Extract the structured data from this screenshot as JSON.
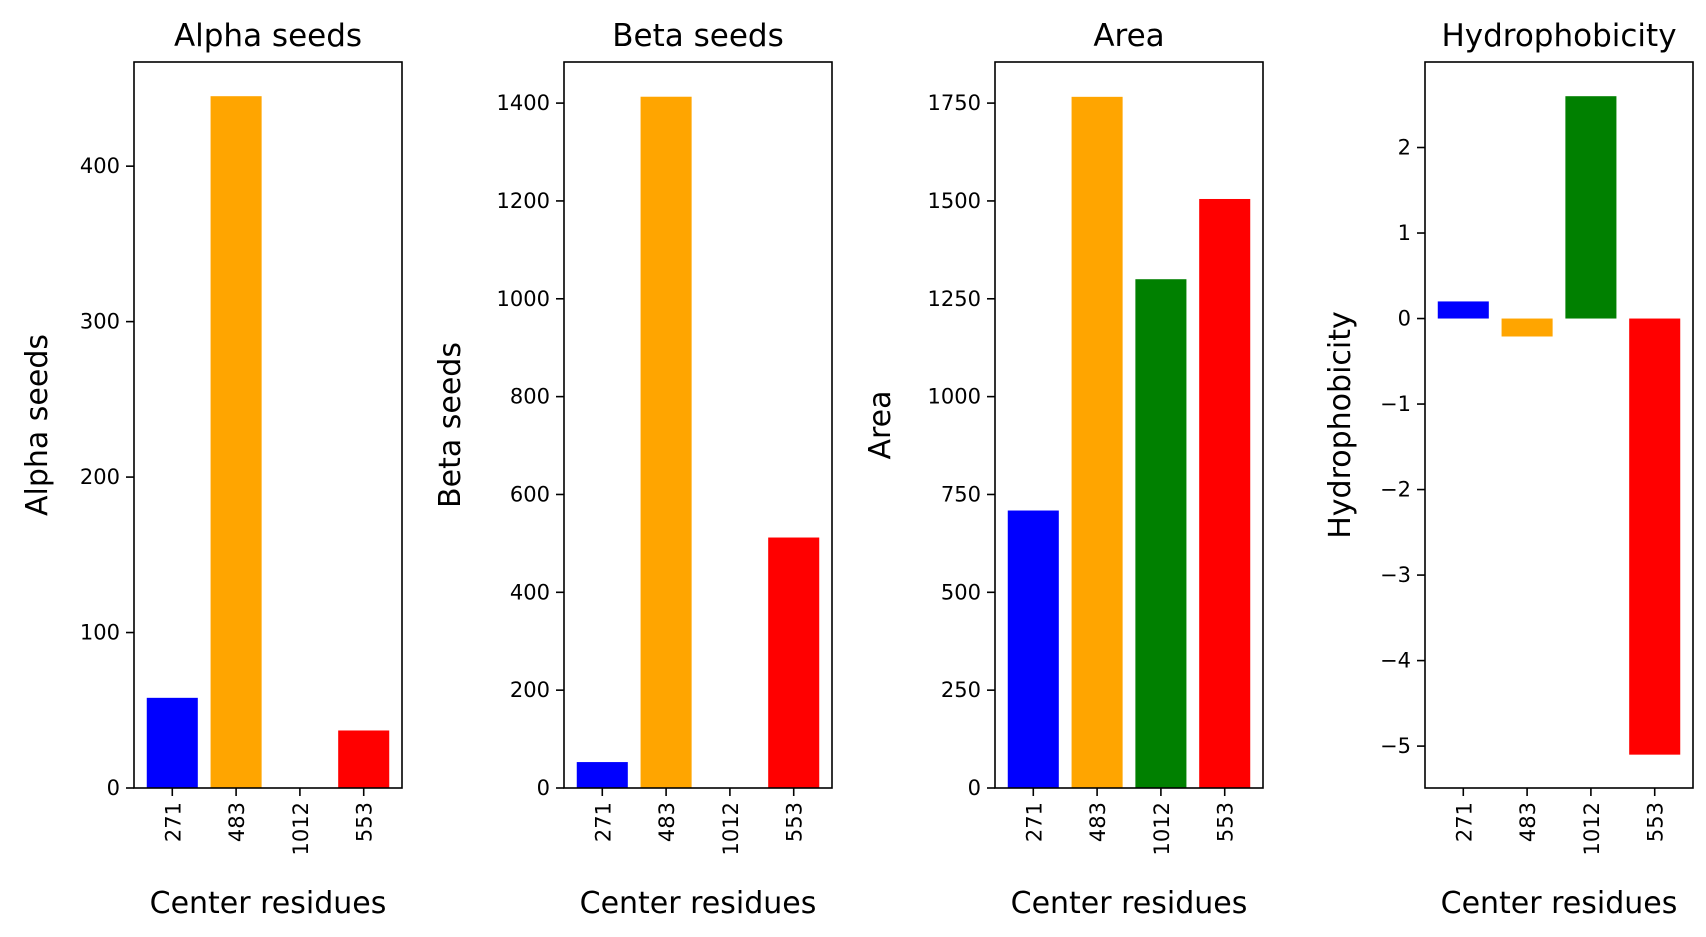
{
  "chart_data": [
    {
      "type": "bar",
      "title": "Alpha seeds",
      "xlabel": "Center residues",
      "ylabel": "Alpha seeds",
      "categories": [
        "271",
        "483",
        "1012",
        "553"
      ],
      "values": [
        58,
        445,
        0,
        37
      ],
      "colors": [
        "#0000ff",
        "#ffa500",
        "#008000",
        "#ff0000"
      ],
      "ylim": [
        0,
        467
      ],
      "yticks": [
        0,
        100,
        200,
        300,
        400
      ],
      "ytick_labels": [
        "0",
        "100",
        "200",
        "300",
        "400"
      ],
      "grid": false
    },
    {
      "type": "bar",
      "title": "Beta seeds",
      "xlabel": "Center residues",
      "ylabel": "Beta seeds",
      "categories": [
        "271",
        "483",
        "1012",
        "553"
      ],
      "values": [
        53,
        1413,
        0,
        512
      ],
      "colors": [
        "#0000ff",
        "#ffa500",
        "#008000",
        "#ff0000"
      ],
      "ylim": [
        0,
        1484
      ],
      "yticks": [
        0,
        200,
        400,
        600,
        800,
        1000,
        1200,
        1400
      ],
      "ytick_labels": [
        "0",
        "200",
        "400",
        "600",
        "800",
        "1000",
        "1200",
        "1400"
      ],
      "grid": false
    },
    {
      "type": "bar",
      "title": "Area",
      "xlabel": "Center residues",
      "ylabel": "Area",
      "categories": [
        "271",
        "483",
        "1012",
        "553"
      ],
      "values": [
        709,
        1766,
        1300,
        1505
      ],
      "colors": [
        "#0000ff",
        "#ffa500",
        "#008000",
        "#ff0000"
      ],
      "ylim": [
        0,
        1855
      ],
      "yticks": [
        0,
        250,
        500,
        750,
        1000,
        1250,
        1500,
        1750
      ],
      "ytick_labels": [
        "0",
        "250",
        "500",
        "750",
        "1000",
        "1250",
        "1500",
        "1750"
      ],
      "grid": false
    },
    {
      "type": "bar",
      "title": "Hydrophobicity",
      "xlabel": "Center residues",
      "ylabel": "Hydrophobicity",
      "categories": [
        "271",
        "483",
        "1012",
        "553"
      ],
      "values": [
        0.2,
        -0.21,
        2.6,
        -5.1
      ],
      "colors": [
        "#0000ff",
        "#ffa500",
        "#008000",
        "#ff0000"
      ],
      "ylim": [
        -5.49,
        3.0
      ],
      "yticks": [
        -5,
        -4,
        -3,
        -2,
        -1,
        0,
        1,
        2
      ],
      "ytick_labels": [
        "−5",
        "−4",
        "−3",
        "−2",
        "−1",
        "0",
        "1",
        "2"
      ],
      "grid": false
    }
  ]
}
